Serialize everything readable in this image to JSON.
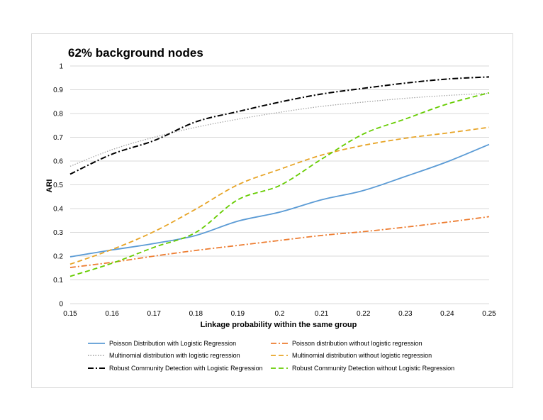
{
  "chart_data": {
    "type": "line",
    "title": "62% background nodes",
    "xlabel": "Linkage probability within the same group",
    "ylabel": "ARI",
    "x": [
      0.15,
      0.16,
      0.17,
      0.18,
      0.19,
      0.2,
      0.21,
      0.22,
      0.23,
      0.24,
      0.25
    ],
    "xticks": [
      "0.15",
      "0.16",
      "0.17",
      "0.18",
      "0.19",
      "0.2",
      "0.21",
      "0.22",
      "0.23",
      "0.24",
      "0.25"
    ],
    "yticks": [
      "0",
      "0.1",
      "0.2",
      "0.3",
      "0.4",
      "0.5",
      "0.6",
      "0.7",
      "0.8",
      "0.9",
      "1"
    ],
    "xlim": [
      0.15,
      0.25
    ],
    "ylim": [
      0,
      1
    ],
    "grid": true,
    "legend_position": "bottom",
    "series": [
      {
        "name": "Poisson Distribution with Logistic Regression",
        "color": "#5b9bd5",
        "dash": "solid",
        "values": [
          0.197,
          0.226,
          0.253,
          0.287,
          0.347,
          0.385,
          0.437,
          0.476,
          0.535,
          0.597,
          0.67
        ]
      },
      {
        "name": "Poisson distribution without logistic regression",
        "color": "#ed7d31",
        "dash": "dashdot",
        "values": [
          0.152,
          0.174,
          0.2,
          0.224,
          0.245,
          0.266,
          0.287,
          0.303,
          0.322,
          0.343,
          0.366
        ]
      },
      {
        "name": "Multinomial distribution with logistic regression",
        "color": "#a5a5a5",
        "dash": "dot",
        "values": [
          0.578,
          0.648,
          0.7,
          0.742,
          0.776,
          0.805,
          0.83,
          0.848,
          0.864,
          0.876,
          0.885
        ]
      },
      {
        "name": "Multinomial distribution without logistic regression",
        "color": "#e7a426",
        "dash": "dash",
        "values": [
          0.166,
          0.228,
          0.303,
          0.398,
          0.5,
          0.565,
          0.625,
          0.666,
          0.696,
          0.718,
          0.742
        ]
      },
      {
        "name": "Robust Community Detection with Logistic Regression",
        "color": "#000000",
        "dash": "dashdot",
        "values": [
          0.545,
          0.629,
          0.686,
          0.765,
          0.808,
          0.848,
          0.882,
          0.906,
          0.928,
          0.945,
          0.954
        ]
      },
      {
        "name": "Robust Community Detection without Logistic Regression",
        "color": "#66cc00",
        "dash": "dash",
        "values": [
          0.115,
          0.17,
          0.237,
          0.3,
          0.437,
          0.497,
          0.608,
          0.714,
          0.777,
          0.84,
          0.887
        ]
      }
    ]
  }
}
